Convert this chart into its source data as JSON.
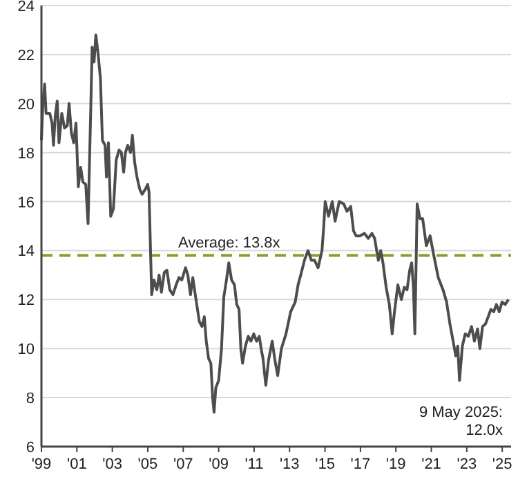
{
  "chart_data": {
    "type": "line",
    "x": [
      1999.0,
      1999.08,
      1999.18,
      1999.26,
      1999.47,
      1999.6,
      1999.68,
      1999.78,
      1999.89,
      1999.99,
      2000.15,
      2000.3,
      2000.46,
      2000.56,
      2000.69,
      2000.82,
      2000.95,
      2001.08,
      2001.21,
      2001.34,
      2001.5,
      2001.63,
      2001.79,
      2001.86,
      2001.97,
      2002.07,
      2002.2,
      2002.33,
      2002.44,
      2002.59,
      2002.67,
      2002.78,
      2002.91,
      2003.06,
      2003.22,
      2003.38,
      2003.51,
      2003.64,
      2003.74,
      2003.87,
      2004.03,
      2004.13,
      2004.26,
      2004.39,
      2004.55,
      2004.68,
      2004.86,
      2004.99,
      2005.07,
      2005.22,
      2005.35,
      2005.51,
      2005.64,
      2005.77,
      2005.93,
      2006.08,
      2006.24,
      2006.42,
      2006.6,
      2006.76,
      2006.92,
      2007.13,
      2007.26,
      2007.41,
      2007.54,
      2007.7,
      2007.91,
      2008.06,
      2008.19,
      2008.3,
      2008.43,
      2008.56,
      2008.66,
      2008.74,
      2008.84,
      2009.0,
      2009.16,
      2009.29,
      2009.44,
      2009.57,
      2009.73,
      2009.89,
      2010.02,
      2010.15,
      2010.25,
      2010.35,
      2010.51,
      2010.67,
      2010.82,
      2010.98,
      2011.14,
      2011.29,
      2011.42,
      2011.5,
      2011.66,
      2011.81,
      2012.02,
      2012.18,
      2012.33,
      2012.54,
      2012.8,
      2013.06,
      2013.32,
      2013.48,
      2013.63,
      2013.84,
      2014.04,
      2014.23,
      2014.41,
      2014.61,
      2014.83,
      2014.93,
      2015.01,
      2015.2,
      2015.41,
      2015.57,
      2015.8,
      2016.06,
      2016.24,
      2016.45,
      2016.61,
      2016.76,
      2016.97,
      2017.23,
      2017.44,
      2017.65,
      2017.8,
      2018.01,
      2018.14,
      2018.27,
      2018.45,
      2018.63,
      2018.79,
      2018.92,
      2019.11,
      2019.31,
      2019.47,
      2019.63,
      2019.78,
      2019.89,
      2019.99,
      2020.07,
      2020.2,
      2020.36,
      2020.51,
      2020.72,
      2020.93,
      2021.14,
      2021.39,
      2021.66,
      2021.86,
      2022.05,
      2022.23,
      2022.38,
      2022.49,
      2022.59,
      2022.75,
      2022.91,
      2023.09,
      2023.27,
      2023.43,
      2023.61,
      2023.74,
      2023.89,
      2024.05,
      2024.21,
      2024.36,
      2024.52,
      2024.67,
      2024.83,
      2024.99,
      2025.17,
      2025.35
    ],
    "series": [
      {
        "color": "#4d4d4d",
        "values": [
          18.5,
          20.0,
          20.8,
          19.6,
          19.6,
          19.2,
          18.3,
          19.5,
          20.1,
          18.4,
          19.6,
          19.0,
          19.1,
          20.0,
          18.8,
          18.4,
          19.2,
          16.6,
          17.4,
          16.8,
          16.7,
          15.1,
          20.0,
          22.3,
          21.7,
          22.8,
          22.0,
          21.0,
          18.5,
          18.3,
          17.0,
          18.4,
          15.4,
          15.7,
          17.7,
          18.1,
          18.0,
          17.2,
          18.0,
          18.3,
          18.0,
          18.7,
          17.6,
          17.0,
          16.5,
          16.3,
          16.5,
          16.7,
          16.4,
          12.2,
          12.8,
          12.4,
          13.0,
          12.3,
          13.1,
          13.2,
          12.4,
          12.2,
          12.6,
          12.9,
          12.8,
          13.3,
          13.0,
          12.2,
          12.9,
          12.1,
          11.1,
          10.9,
          11.3,
          10.3,
          9.6,
          9.4,
          8.0,
          7.4,
          8.4,
          8.7,
          10.0,
          12.1,
          12.8,
          13.5,
          12.8,
          12.6,
          11.8,
          11.6,
          10.0,
          9.4,
          10.1,
          10.5,
          10.3,
          10.6,
          10.3,
          10.5,
          9.9,
          9.6,
          8.5,
          9.5,
          10.3,
          9.5,
          8.9,
          10.0,
          10.6,
          11.5,
          11.9,
          12.6,
          13.0,
          13.6,
          14.0,
          13.6,
          13.6,
          13.3,
          14.0,
          15.0,
          16.0,
          15.4,
          16.0,
          15.2,
          16.0,
          15.9,
          15.6,
          15.8,
          14.8,
          14.6,
          14.6,
          14.7,
          14.5,
          14.7,
          14.5,
          13.6,
          14.0,
          13.5,
          12.5,
          11.8,
          10.6,
          11.5,
          12.6,
          12.0,
          12.5,
          12.4,
          13.2,
          13.5,
          12.5,
          10.6,
          15.9,
          15.3,
          15.3,
          14.2,
          14.6,
          13.8,
          12.9,
          12.4,
          11.9,
          11.0,
          10.3,
          9.7,
          10.1,
          8.7,
          10.1,
          10.6,
          10.5,
          10.9,
          10.3,
          10.8,
          10.0,
          10.9,
          11.0,
          11.3,
          11.6,
          11.5,
          11.8,
          11.5,
          11.9,
          11.8,
          12.0
        ]
      }
    ],
    "xlim": [
      1999,
      2025.5
    ],
    "xticks": [
      {
        "value": 1999,
        "label": "'99"
      },
      {
        "value": 2001,
        "label": "'01"
      },
      {
        "value": 2003,
        "label": "'03"
      },
      {
        "value": 2005,
        "label": "'05"
      },
      {
        "value": 2007,
        "label": "'07"
      },
      {
        "value": 2009,
        "label": "'09"
      },
      {
        "value": 2011,
        "label": "'11"
      },
      {
        "value": 2013,
        "label": "'13"
      },
      {
        "value": 2015,
        "label": "'15"
      },
      {
        "value": 2017,
        "label": "'17"
      },
      {
        "value": 2019,
        "label": "'19"
      },
      {
        "value": 2021,
        "label": "'21"
      },
      {
        "value": 2023,
        "label": "'23"
      },
      {
        "value": 2025,
        "label": "'25"
      }
    ],
    "ylim": [
      6,
      24
    ],
    "yticks": [
      6,
      8,
      10,
      12,
      14,
      16,
      18,
      20,
      22,
      24
    ],
    "grid": "y",
    "ref_lines": [
      {
        "axis": "y",
        "value": 13.8,
        "label": "Average: 13.8x",
        "color": "#8c9b2c",
        "line_style": "dashed"
      }
    ],
    "annotations": [
      "9 May 2025: 12.0x"
    ]
  }
}
